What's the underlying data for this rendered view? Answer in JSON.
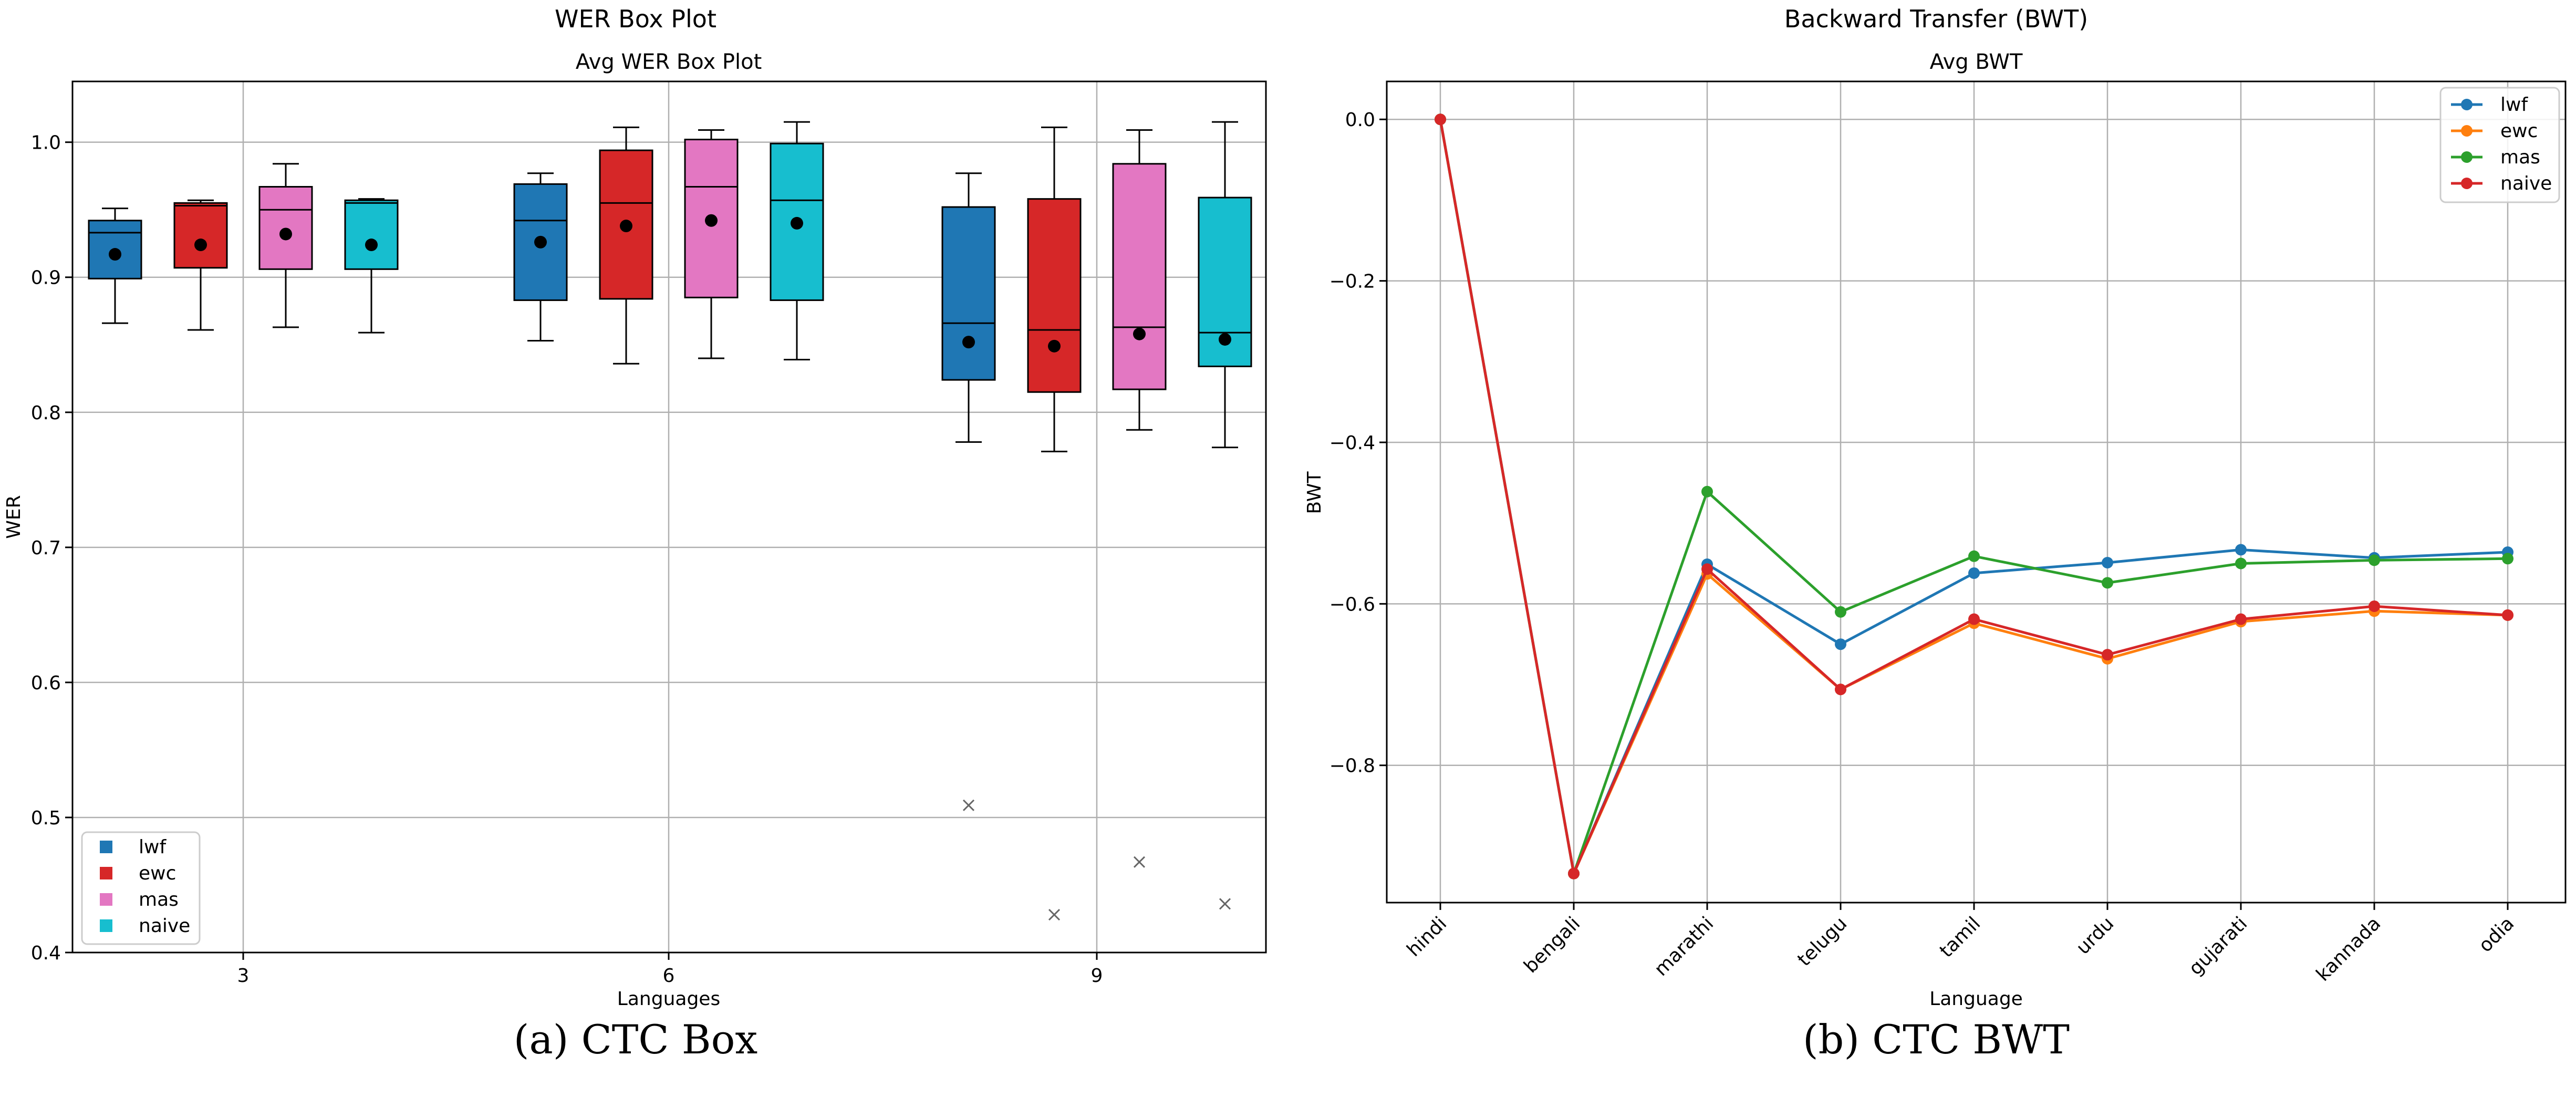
{
  "figure": {
    "left": {
      "suptitle": "WER Box Plot",
      "caption": "(a) CTC Box"
    },
    "right": {
      "suptitle": "Backward Transfer (BWT)",
      "caption": "(b) CTC BWT"
    }
  },
  "colors": {
    "lwf_box": "#1f77b4",
    "ewc_box": "#d62728",
    "mas_box": "#e377c2",
    "naive_box": "#17becf",
    "lwf_line": "#1f77b4",
    "ewc_line": "#ff7f0e",
    "mas_line": "#2ca02c",
    "naive_line": "#d62728",
    "grid": "#b0b0b0"
  },
  "chart_data": [
    {
      "type": "box",
      "title": "Avg WER Box Plot",
      "xlabel": "Languages",
      "ylabel": "WER",
      "ylim": [
        0.4,
        1.045
      ],
      "yticks": [
        "0.4",
        "0.5",
        "0.6",
        "0.7",
        "0.8",
        "0.9",
        "1.0"
      ],
      "categories": [
        "3",
        "6",
        "9"
      ],
      "legend_position": "lower-left",
      "grid": true,
      "series": [
        {
          "name": "lwf",
          "boxes": [
            {
              "whisker_low": 0.866,
              "q1": 0.899,
              "median": 0.933,
              "q3": 0.942,
              "whisker_high": 0.951,
              "mean": 0.917,
              "outliers": []
            },
            {
              "whisker_low": 0.853,
              "q1": 0.883,
              "median": 0.942,
              "q3": 0.969,
              "whisker_high": 0.977,
              "mean": 0.926,
              "outliers": []
            },
            {
              "whisker_low": 0.778,
              "q1": 0.824,
              "median": 0.866,
              "q3": 0.952,
              "whisker_high": 0.977,
              "mean": 0.852,
              "outliers": [
                0.509
              ]
            }
          ]
        },
        {
          "name": "ewc",
          "boxes": [
            {
              "whisker_low": 0.861,
              "q1": 0.907,
              "median": 0.953,
              "q3": 0.955,
              "whisker_high": 0.957,
              "mean": 0.924,
              "outliers": []
            },
            {
              "whisker_low": 0.836,
              "q1": 0.884,
              "median": 0.955,
              "q3": 0.994,
              "whisker_high": 1.011,
              "mean": 0.938,
              "outliers": []
            },
            {
              "whisker_low": 0.771,
              "q1": 0.815,
              "median": 0.861,
              "q3": 0.958,
              "whisker_high": 1.011,
              "mean": 0.849,
              "outliers": [
                0.428
              ]
            }
          ]
        },
        {
          "name": "mas",
          "boxes": [
            {
              "whisker_low": 0.863,
              "q1": 0.906,
              "median": 0.95,
              "q3": 0.967,
              "whisker_high": 0.984,
              "mean": 0.932,
              "outliers": []
            },
            {
              "whisker_low": 0.84,
              "q1": 0.885,
              "median": 0.967,
              "q3": 1.002,
              "whisker_high": 1.009,
              "mean": 0.942,
              "outliers": []
            },
            {
              "whisker_low": 0.787,
              "q1": 0.817,
              "median": 0.863,
              "q3": 0.984,
              "whisker_high": 1.009,
              "mean": 0.858,
              "outliers": [
                0.467
              ]
            }
          ]
        },
        {
          "name": "naive",
          "boxes": [
            {
              "whisker_low": 0.859,
              "q1": 0.906,
              "median": 0.955,
              "q3": 0.957,
              "whisker_high": 0.958,
              "mean": 0.924,
              "outliers": []
            },
            {
              "whisker_low": 0.839,
              "q1": 0.883,
              "median": 0.957,
              "q3": 0.999,
              "whisker_high": 1.015,
              "mean": 0.94,
              "outliers": []
            },
            {
              "whisker_low": 0.774,
              "q1": 0.834,
              "median": 0.859,
              "q3": 0.959,
              "whisker_high": 1.015,
              "mean": 0.854,
              "outliers": [
                0.436
              ]
            }
          ]
        }
      ]
    },
    {
      "type": "line",
      "title": "Avg BWT",
      "xlabel": "Language",
      "ylabel": "BWT",
      "ylim": [
        -0.97,
        0.047
      ],
      "yticks": [
        "0.0",
        "−0.2",
        "−0.4",
        "−0.6",
        "−0.8"
      ],
      "ytick_values": [
        0.0,
        -0.2,
        -0.4,
        -0.6,
        -0.8
      ],
      "categories": [
        "hindi",
        "bengali",
        "marathi",
        "telugu",
        "tamil",
        "urdu",
        "gujarati",
        "kannada",
        "odia"
      ],
      "legend_position": "top-right",
      "grid": true,
      "series": [
        {
          "name": "lwf",
          "values": [
            0.0,
            -0.934,
            -0.551,
            -0.65,
            -0.562,
            -0.549,
            -0.533,
            -0.543,
            -0.536
          ]
        },
        {
          "name": "ewc",
          "values": [
            0.0,
            -0.934,
            -0.563,
            -0.706,
            -0.624,
            -0.668,
            -0.622,
            -0.609,
            -0.614
          ]
        },
        {
          "name": "mas",
          "values": [
            0.0,
            -0.934,
            -0.461,
            -0.61,
            -0.541,
            -0.574,
            -0.55,
            -0.546,
            -0.544
          ]
        },
        {
          "name": "naive",
          "values": [
            0.0,
            -0.934,
            -0.557,
            -0.706,
            -0.619,
            -0.663,
            -0.619,
            -0.603,
            -0.614
          ]
        }
      ]
    }
  ]
}
